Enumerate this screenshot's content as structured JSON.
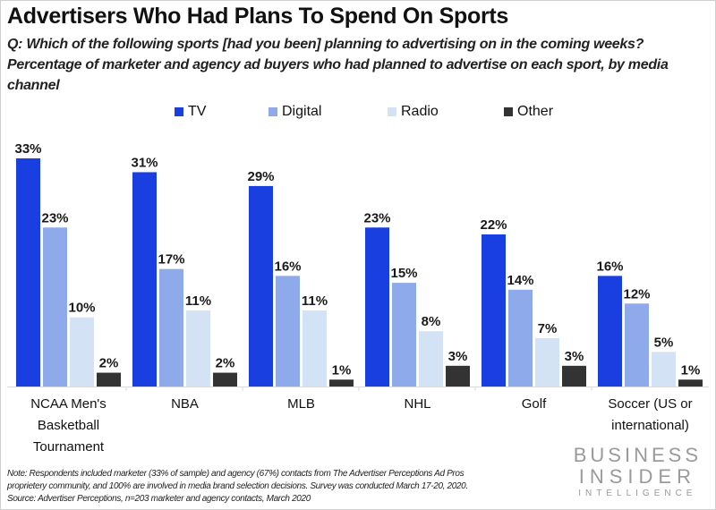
{
  "header": {
    "title": "Advertisers Who Had Plans To Spend On Sports",
    "subtitle": "Q: Which of the following sports [had you been] planning to advertising on in the coming weeks? Percentage of marketer and agency ad buyers who had planned to advertise on each sport, by media channel"
  },
  "chart_data": {
    "type": "bar",
    "title": "Advertisers Who Had Plans To Spend On Sports",
    "xlabel": "",
    "ylabel": "",
    "ylim": [
      0,
      33
    ],
    "grid": false,
    "legend_position": "top-center",
    "categories": [
      "NCAA Men's Basketball Tournament",
      "NBA",
      "MLB",
      "NHL",
      "Golf",
      "Soccer (US or international)"
    ],
    "series": [
      {
        "name": "TV",
        "color": "#1a3fe0",
        "values": [
          33,
          31,
          29,
          23,
          22,
          16
        ]
      },
      {
        "name": "Digital",
        "color": "#8eaaea",
        "values": [
          23,
          17,
          16,
          15,
          14,
          12
        ]
      },
      {
        "name": "Radio",
        "color": "#d3e2f5",
        "values": [
          10,
          11,
          11,
          8,
          7,
          5
        ]
      },
      {
        "name": "Other",
        "color": "#333333",
        "values": [
          2,
          2,
          1,
          3,
          3,
          1
        ]
      }
    ],
    "value_suffix": "%"
  },
  "legend": [
    {
      "label": "TV",
      "color": "#1a3fe0"
    },
    {
      "label": "Digital",
      "color": "#8eaaea"
    },
    {
      "label": "Radio",
      "color": "#d3e2f5"
    },
    {
      "label": "Other",
      "color": "#333333"
    }
  ],
  "category_labels": [
    [
      "NCAA Men's",
      "Basketball",
      "Tournament"
    ],
    [
      "NBA"
    ],
    [
      "MLB"
    ],
    [
      "NHL"
    ],
    [
      "Golf"
    ],
    [
      "Soccer (US or",
      "international)"
    ]
  ],
  "footer": {
    "note_lines": [
      "Note: Respondents included marketer (33% of sample) and agency (67%) contacts from The Advertiser Perceptions Ad Pros",
      "proprietery community, and 100% are involved in media brand selection decisions. Survey was conducted March 17-20, 2020.",
      "Source: Advertiser Perceptions, n=203 marketer and agency contacts, March 2020"
    ],
    "brand_line1": "BUSINESS",
    "brand_line2": "INSIDER",
    "brand_line3": "INTELLIGENCE"
  }
}
